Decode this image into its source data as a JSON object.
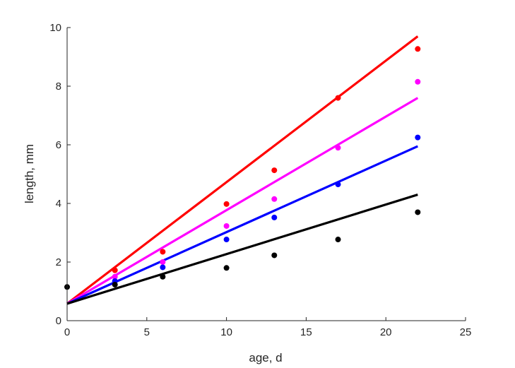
{
  "chart_data": {
    "type": "scatter",
    "title": "",
    "xlabel": "age, d",
    "ylabel": "length, mm",
    "xlim": [
      0,
      25
    ],
    "ylim": [
      0,
      10
    ],
    "xticks": [
      0,
      5,
      10,
      15,
      20,
      25
    ],
    "yticks": [
      0,
      2,
      4,
      6,
      8,
      10
    ],
    "grid": false,
    "legend": "none",
    "points": [
      {
        "x": 0,
        "y": 1.15,
        "color": "#000000"
      }
    ],
    "series": [
      {
        "color": "#ff0000",
        "x": [
          3,
          6,
          10,
          13,
          17,
          22
        ],
        "y": [
          1.72,
          2.35,
          3.98,
          5.13,
          7.6,
          9.27
        ],
        "fit": {
          "x": [
            0,
            22
          ],
          "y": [
            0.58,
            9.7
          ]
        }
      },
      {
        "color": "#ff00ff",
        "x": [
          3,
          6,
          10,
          13,
          17,
          22
        ],
        "y": [
          1.5,
          2.0,
          3.23,
          4.15,
          5.9,
          8.15
        ],
        "fit": {
          "x": [
            0,
            22
          ],
          "y": [
            0.58,
            7.6
          ]
        }
      },
      {
        "color": "#0000ff",
        "x": [
          3,
          6,
          10,
          13,
          17,
          22
        ],
        "y": [
          1.35,
          1.82,
          2.77,
          3.52,
          4.65,
          6.25
        ],
        "fit": {
          "x": [
            0,
            22
          ],
          "y": [
            0.58,
            5.95
          ]
        }
      },
      {
        "color": "#000000",
        "x": [
          3,
          6,
          10,
          13,
          17,
          22
        ],
        "y": [
          1.23,
          1.5,
          1.8,
          2.23,
          2.77,
          3.7
        ],
        "fit": {
          "x": [
            0,
            22
          ],
          "y": [
            0.58,
            4.3
          ]
        }
      }
    ]
  }
}
